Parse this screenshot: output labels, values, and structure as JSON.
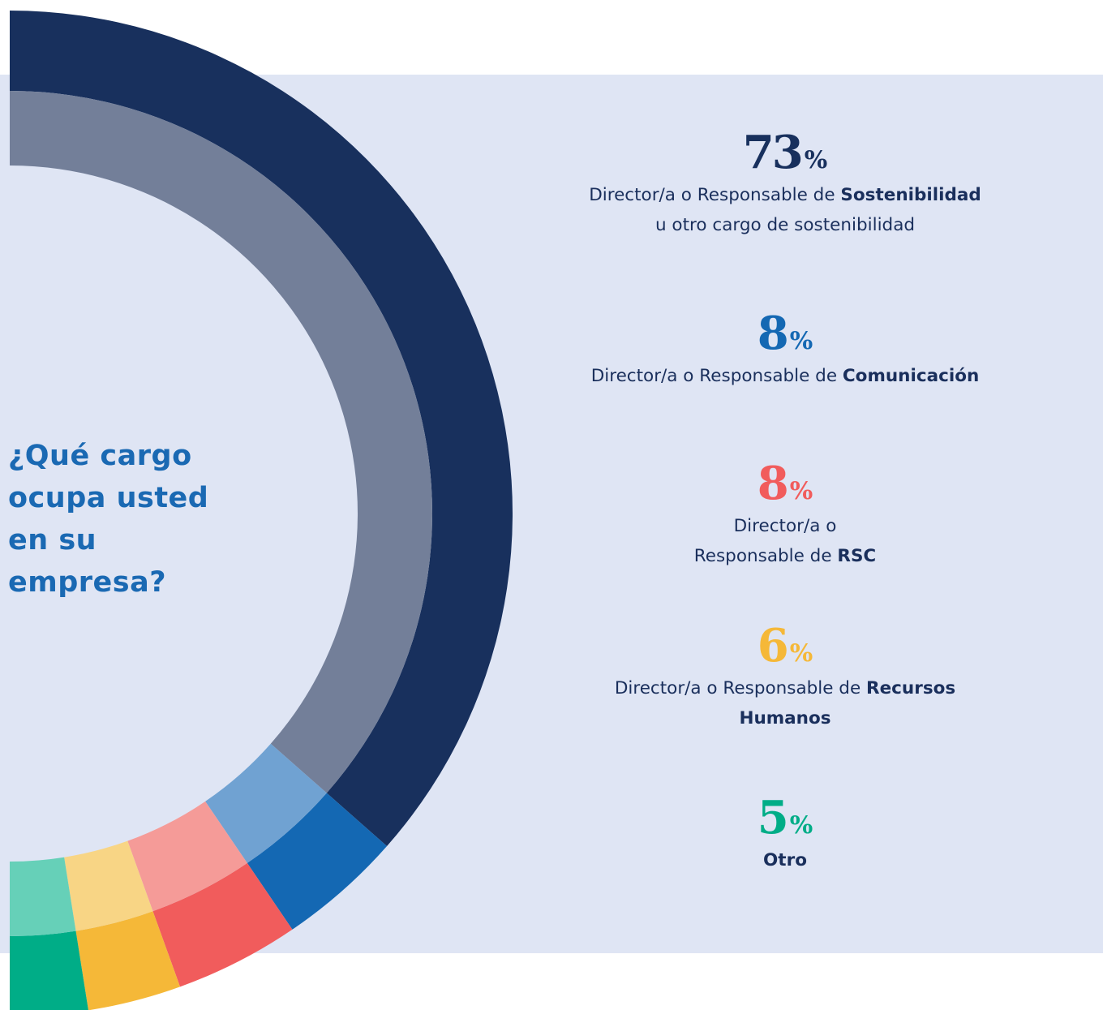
{
  "question": "¿Qué cargo ocupa usted en su empresa?",
  "chart_data": {
    "type": "pie",
    "title": "¿Qué cargo ocupa usted en su empresa?",
    "percent_sign": "%",
    "slices": [
      {
        "value": 73,
        "label_parts": [
          {
            "text": "Director/a o Responsable de ",
            "bold": false
          },
          {
            "text": "Sostenibilidad",
            "bold": true
          },
          {
            "text": " u otro cargo de sostenibilidad",
            "bold": false
          }
        ],
        "color": "#18305d",
        "inner_color": "#737f99",
        "text_color": "#18305d"
      },
      {
        "value": 8,
        "label_parts": [
          {
            "text": "Director/a o Responsable de ",
            "bold": false
          },
          {
            "text": "Comunicación",
            "bold": true
          }
        ],
        "color": "#1468b3",
        "inner_color": "#70a2d2",
        "text_color": "#1468b3"
      },
      {
        "value": 8,
        "label_parts": [
          {
            "text": "Director/a o",
            "bold": false
          },
          {
            "br": true
          },
          {
            "text": "Responsable de ",
            "bold": false
          },
          {
            "text": "RSC",
            "bold": true
          }
        ],
        "color": "#f15c5c",
        "inner_color": "#f59b98",
        "text_color": "#f15c5c"
      },
      {
        "value": 6,
        "label_parts": [
          {
            "text": "Director/a o Responsable de ",
            "bold": false
          },
          {
            "text": "Recursos Humanos",
            "bold": true
          }
        ],
        "color": "#f5b838",
        "inner_color": "#f8d585",
        "text_color": "#f5b838"
      },
      {
        "value": 5,
        "label_parts": [
          {
            "text": "Otro",
            "bold": true
          }
        ],
        "color": "#00ad87",
        "inner_color": "#66d0b8",
        "text_color": "#00ad87"
      }
    ]
  }
}
